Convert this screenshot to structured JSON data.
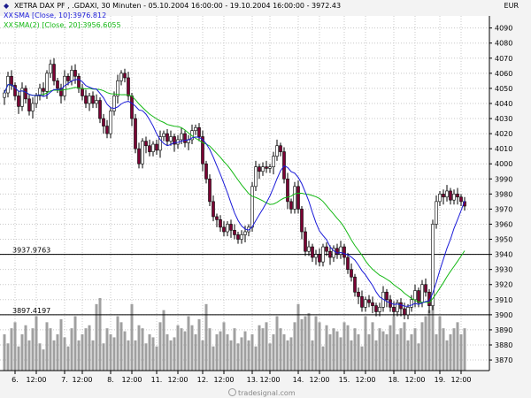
{
  "legend": [
    {
      "marker": "◆",
      "text": "XETRA DAX PF    , .GDAXI, 30 Minuten - 05.10.2004 16:00:00 - 19.10.2004 16:00:00 - 3972.43",
      "color": "#1a1a8c"
    },
    {
      "marker": "XX",
      "text": "SMA [Close, 10]:3976.812",
      "color": "#1a1ad8"
    },
    {
      "marker": "XX",
      "text": "SMA(2) [Close, 20]:3956.6055",
      "color": "#14b814"
    }
  ],
  "currency": "EUR",
  "watermark": "tradesignal.com",
  "colors": {
    "up": "#ffffff",
    "down": "#7a0033",
    "wick": "#000000",
    "sma10": "#1a1ad8",
    "sma20": "#14b814",
    "volume": "#a0a0a0"
  },
  "chart_data": {
    "type": "candlestick",
    "ylim": [
      3863,
      4098
    ],
    "ylabels": [
      4090,
      4080,
      4070,
      4060,
      4050,
      4040,
      4030,
      4020,
      4010,
      4000,
      3990,
      3980,
      3970,
      3960,
      3950,
      3940,
      3930,
      3920,
      3910,
      3900,
      3890,
      3880,
      3870
    ],
    "xlabels": [
      {
        "label": "6.",
        "at": 3
      },
      {
        "label": "12:00",
        "at": 9
      },
      {
        "label": "7.",
        "at": 17
      },
      {
        "label": "12:00",
        "at": 22
      },
      {
        "label": "8.",
        "at": 30
      },
      {
        "label": "12:00",
        "at": 36
      },
      {
        "label": "11.",
        "at": 43
      },
      {
        "label": "12:00",
        "at": 49
      },
      {
        "label": "12.",
        "at": 56
      },
      {
        "label": "12:00",
        "at": 62
      },
      {
        "label": "13.",
        "at": 70
      },
      {
        "label": "12:00",
        "at": 75
      },
      {
        "label": "14.",
        "at": 83
      },
      {
        "label": "12:00",
        "at": 89
      },
      {
        "label": "15.",
        "at": 96
      },
      {
        "label": "12:00",
        "at": 102
      },
      {
        "label": "18.",
        "at": 110
      },
      {
        "label": "12:00",
        "at": 116
      },
      {
        "label": "19.",
        "at": 123
      },
      {
        "label": "12:00",
        "at": 129
      }
    ],
    "hlines": [
      {
        "value": 3940,
        "label": "3937.9763"
      },
      {
        "value": 3900,
        "label": "3897.4197"
      }
    ],
    "close": [
      4047,
      4058,
      4052,
      4045,
      4038,
      4050,
      4043,
      4035,
      4040,
      4045,
      4050,
      4048,
      4060,
      4066,
      4055,
      4050,
      4045,
      4058,
      4055,
      4062,
      4058,
      4050,
      4045,
      4040,
      4045,
      4040,
      4042,
      4030,
      4025,
      4020,
      4035,
      4045,
      4055,
      4060,
      4057,
      4045,
      4030,
      4010,
      4000,
      4015,
      4012,
      4008,
      4013,
      4009,
      4018,
      4020,
      4015,
      4018,
      4013,
      4016,
      4020,
      4014,
      4016,
      4022,
      4024,
      4018,
      4000,
      3990,
      3975,
      3965,
      3963,
      3958,
      3955,
      3960,
      3956,
      3953,
      3950,
      3953,
      3955,
      3958,
      3985,
      3998,
      3995,
      3998,
      3997,
      3998,
      4005,
      4012,
      4008,
      3990,
      3975,
      3970,
      3985,
      3970,
      3955,
      3942,
      3945,
      3938,
      3940,
      3935,
      3945,
      3942,
      3938,
      3944,
      3940,
      3945,
      3938,
      3930,
      3925,
      3915,
      3912,
      3905,
      3910,
      3908,
      3906,
      3902,
      3905,
      3915,
      3910,
      3905,
      3902,
      3908,
      3904,
      3900,
      3905,
      3910,
      3916,
      3908,
      3920,
      3915,
      3906,
      3960,
      3975,
      3980,
      3978,
      3982,
      3976,
      3980,
      3978,
      3975,
      3972
    ],
    "volume": [
      12,
      9,
      14,
      16,
      8,
      12,
      15,
      10,
      14,
      18,
      9,
      7,
      16,
      14,
      10,
      12,
      17,
      11,
      8,
      14,
      18,
      10,
      12,
      14,
      15,
      10,
      22,
      24,
      9,
      14,
      12,
      11,
      18,
      16,
      13,
      10,
      22,
      10,
      15,
      14,
      9,
      12,
      11,
      8,
      16,
      20,
      12,
      10,
      11,
      15,
      14,
      13,
      18,
      15,
      12,
      17,
      10,
      22,
      14,
      8,
      12,
      13,
      16,
      12,
      10,
      14,
      9,
      11,
      13,
      10,
      12,
      8,
      15,
      14,
      16,
      9,
      12,
      18,
      14,
      12,
      10,
      11,
      16,
      22,
      17,
      18,
      19,
      10,
      18,
      16,
      8,
      15,
      12,
      14,
      13,
      11,
      16,
      15,
      10,
      14,
      12,
      8,
      18,
      12,
      16,
      10,
      14,
      13,
      12,
      15,
      18,
      12,
      14,
      16,
      10,
      12,
      14,
      9,
      16,
      18,
      20,
      22,
      12,
      18,
      14,
      10,
      12,
      14,
      16,
      12,
      14
    ],
    "volume_max": 24
  }
}
